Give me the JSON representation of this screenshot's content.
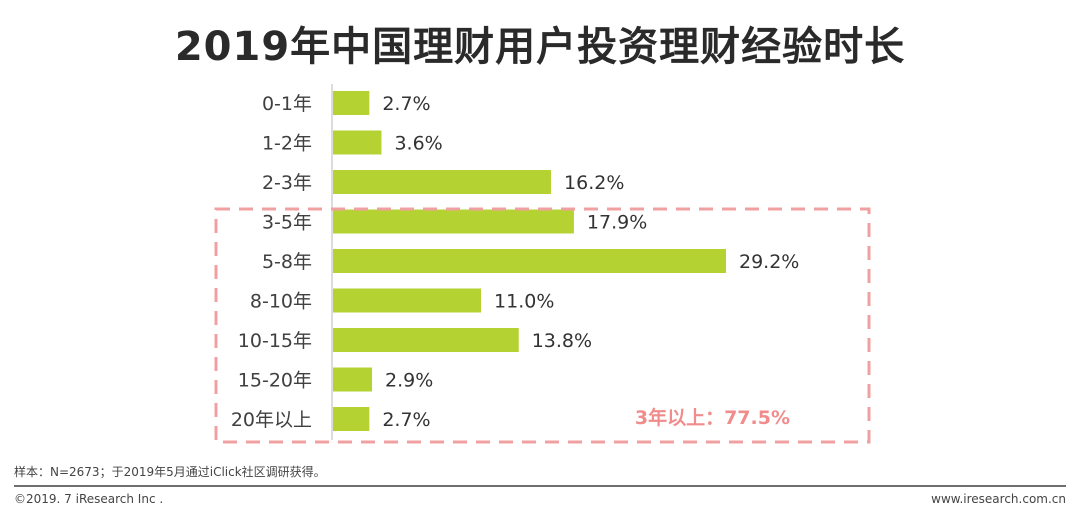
{
  "title": "2019年中国理财用户投资理财经验时长",
  "chart_data": {
    "type": "bar",
    "orientation": "horizontal",
    "title": "2019年中国理财用户投资理财经验时长",
    "categories": [
      "0-1年",
      "1-2年",
      "2-3年",
      "3-5年",
      "5-8年",
      "8-10年",
      "10-15年",
      "15-20年",
      "20年以上"
    ],
    "values": [
      2.7,
      3.6,
      16.2,
      17.9,
      29.2,
      11.0,
      13.8,
      2.9,
      2.7
    ],
    "value_labels": [
      "2.7%",
      "3.6%",
      "16.2%",
      "17.9%",
      "29.2%",
      "11.0%",
      "13.8%",
      "2.9%",
      "2.7%"
    ],
    "unit": "%",
    "bar_color": "#b4d332",
    "highlight_box_color": "#f0a0a0",
    "highlight_categories": [
      "3-5年",
      "5-8年",
      "8-10年",
      "10-15年",
      "15-20年",
      "20年以上"
    ],
    "annotation": "3年以上：77.5%",
    "grid": false,
    "legend": "none"
  },
  "footer": {
    "note": "样本：N=2673；于2019年5月通过iClick社区调研获得。",
    "copyright": "©2019. 7 iResearch Inc .",
    "website": "www.iresearch.com.cn"
  }
}
